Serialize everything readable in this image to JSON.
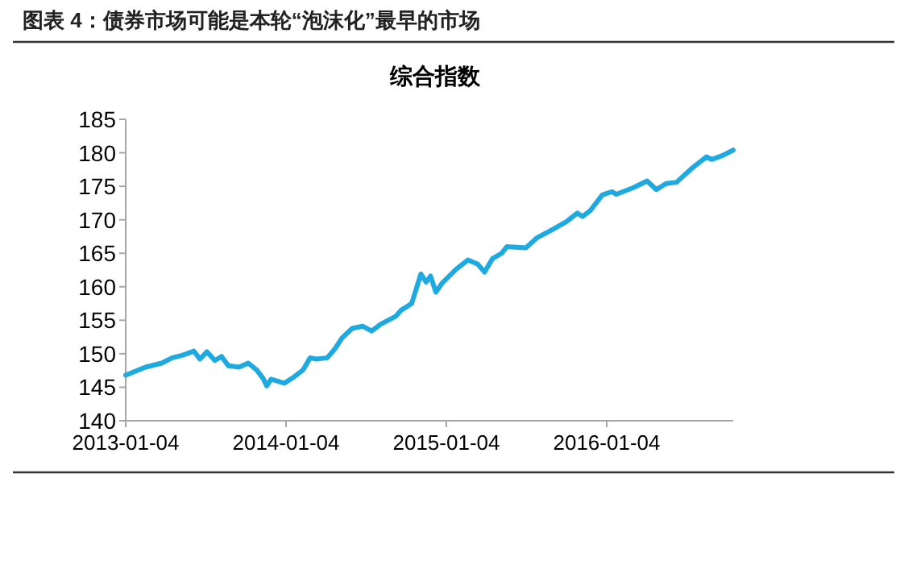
{
  "chart_data": {
    "type": "line",
    "subtitle": "图表 4：债券市场可能是本轮“泡沫化”最早的市场",
    "title": "综合指数",
    "x": [
      "2013-01-04",
      "2013-02-18",
      "2013-03-27",
      "2013-04-20",
      "2013-05-14",
      "2013-06-08",
      "2013-06-22",
      "2013-07-08",
      "2013-07-26",
      "2013-08-10",
      "2013-08-26",
      "2013-09-19",
      "2013-10-10",
      "2013-10-29",
      "2013-11-13",
      "2013-11-21",
      "2013-12-01",
      "2013-12-31",
      "2014-01-19",
      "2014-02-12",
      "2014-02-28",
      "2014-03-14",
      "2014-04-08",
      "2014-04-26",
      "2014-05-12",
      "2014-06-04",
      "2014-06-28",
      "2014-07-18",
      "2014-08-07",
      "2014-09-11",
      "2014-09-23",
      "2014-10-17",
      "2014-11-07",
      "2014-11-19",
      "2014-11-29",
      "2014-12-11",
      "2014-12-26",
      "2015-01-26",
      "2015-02-22",
      "2015-03-16",
      "2015-04-01",
      "2015-04-19",
      "2015-05-10",
      "2015-05-22",
      "2015-07-04",
      "2015-07-29",
      "2015-09-04",
      "2015-10-04",
      "2015-10-29",
      "2015-11-10",
      "2015-11-28",
      "2015-12-25",
      "2016-01-16",
      "2016-01-26",
      "2016-03-05",
      "2016-04-05",
      "2016-04-26",
      "2016-05-18",
      "2016-06-11",
      "2016-07-18",
      "2016-08-18",
      "2016-08-30",
      "2016-09-24",
      "2016-10-18"
    ],
    "series": [
      {
        "color": "#1fa9e1",
        "values": [
          146.8,
          148.0,
          148.6,
          149.4,
          149.8,
          150.4,
          149.2,
          150.3,
          149.0,
          149.6,
          148.2,
          148.0,
          148.6,
          147.6,
          146.3,
          145.2,
          146.2,
          145.6,
          146.4,
          147.6,
          149.4,
          149.2,
          149.4,
          150.8,
          152.4,
          153.8,
          154.1,
          153.4,
          154.4,
          155.6,
          156.5,
          157.5,
          161.9,
          160.7,
          161.6,
          159.2,
          160.6,
          162.6,
          164.0,
          163.4,
          162.2,
          164.2,
          165.0,
          166.0,
          165.8,
          167.3,
          168.6,
          169.7,
          171.0,
          170.5,
          171.4,
          173.7,
          174.2,
          173.8,
          174.8,
          175.8,
          174.5,
          175.4,
          175.6,
          177.8,
          179.4,
          179.0,
          179.6,
          180.4
        ]
      }
    ],
    "xlim": [
      "2013-01-04",
      "2016-10-18"
    ],
    "xticks": [
      "2013-01-04",
      "2014-01-04",
      "2015-01-04",
      "2016-01-04"
    ],
    "ylim": [
      140,
      185
    ],
    "yticks": [
      140,
      145,
      150,
      155,
      160,
      165,
      170,
      175,
      180,
      185
    ],
    "grid": false,
    "marker": "none",
    "line_style": "solid"
  }
}
